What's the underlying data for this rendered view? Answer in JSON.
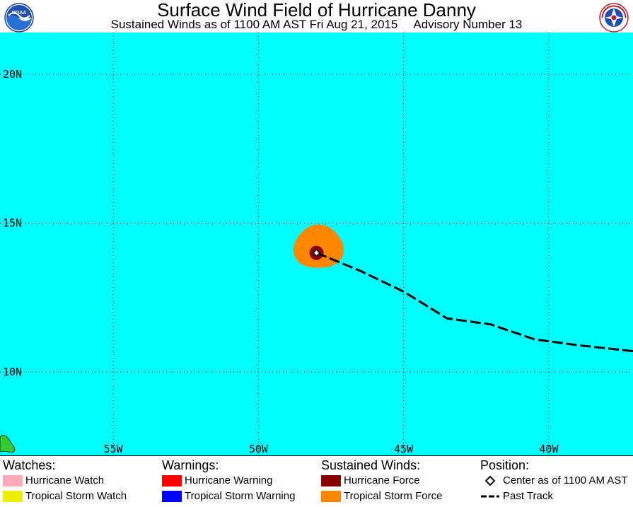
{
  "header": {
    "title": "Surface Wind Field of Hurricane Danny",
    "subtitle_winds": "Sustained Winds as of 1100 AM AST Fri Aug 21, 2015",
    "subtitle_advisory": "Advisory Number 13",
    "noaa_logo_text": "NOAA",
    "nws_logo_text": "NATIONAL WEATHER SERVICE"
  },
  "map": {
    "ocean_color": "#00ffff",
    "land_color": "#33cc33",
    "lon_labels": [
      "55W",
      "50W",
      "45W",
      "40W"
    ],
    "lat_labels": [
      "20N",
      "15N",
      "10N"
    ],
    "lon_range": [
      -58.9,
      -37.1
    ],
    "lat_range": [
      7.2,
      21.4
    ],
    "storm_center": {
      "lon": -48.0,
      "lat": 14.0
    },
    "past_track": [
      {
        "lon": -48.0,
        "lat": 14.0
      },
      {
        "lon": -46.5,
        "lat": 13.4
      },
      {
        "lon": -45.0,
        "lat": 12.7
      },
      {
        "lon": -43.5,
        "lat": 11.8
      },
      {
        "lon": -42.0,
        "lat": 11.6
      },
      {
        "lon": -40.5,
        "lat": 11.1
      },
      {
        "lon": -39.0,
        "lat": 10.9
      },
      {
        "lon": -37.1,
        "lat": 10.7
      }
    ]
  },
  "legend": {
    "watches": {
      "heading": "Watches:",
      "items": [
        {
          "label": "Hurricane Watch",
          "color": "#ffaabb"
        },
        {
          "label": "Tropical Storm Watch",
          "color": "#eeee00"
        }
      ]
    },
    "warnings": {
      "heading": "Warnings:",
      "items": [
        {
          "label": "Hurricane Warning",
          "color": "#ff0000"
        },
        {
          "label": "Tropical Storm Warning",
          "color": "#0000ff"
        }
      ]
    },
    "winds": {
      "heading": "Sustained Winds:",
      "items": [
        {
          "label": "Hurricane Force",
          "color": "#880000"
        },
        {
          "label": "Tropical Storm Force",
          "color": "#ff8800"
        }
      ]
    },
    "position": {
      "heading": "Position:",
      "center_label": "Center as of 1100 AM AST",
      "track_label": "Past Track"
    }
  }
}
